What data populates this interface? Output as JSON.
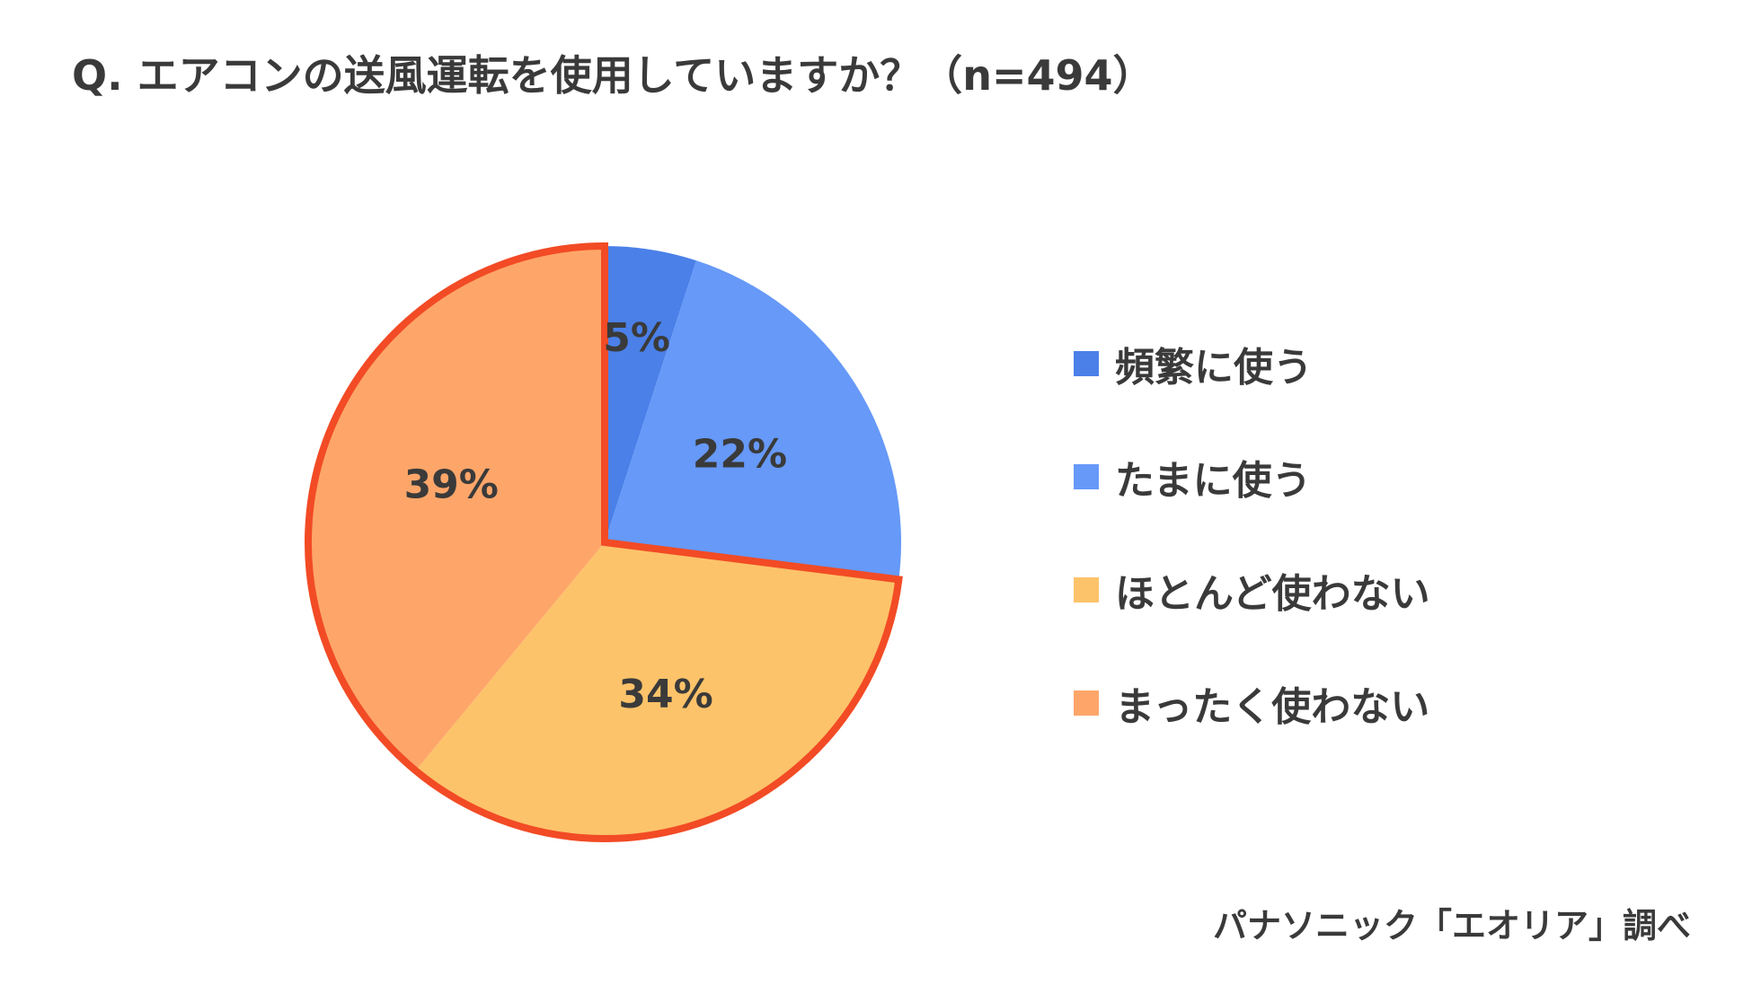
{
  "title": "Q. エアコンの送風運転を使用していますか？（n=494）",
  "source": "パナソニック「エオリア」調べ",
  "chart_data": {
    "type": "pie",
    "title": "Q. エアコンの送風運転を使用していますか？（n=494）",
    "start": "12 o'clock, clockwise",
    "highlight": [
      "ほとんど使わない",
      "まったく使わない"
    ],
    "highlight_color": "#f24b25",
    "slices": [
      {
        "label": "頻繁に使う",
        "value": 5,
        "display": "5%",
        "color": "#4a80e8"
      },
      {
        "label": "たまに使う",
        "value": 22,
        "display": "22%",
        "color": "#6699f8"
      },
      {
        "label": "ほとんど使わない",
        "value": 34,
        "display": "34%",
        "color": "#fdc36a"
      },
      {
        "label": "まったく使わない",
        "value": 39,
        "display": "39%",
        "color": "#fea66a"
      }
    ],
    "legend_position": "right"
  }
}
